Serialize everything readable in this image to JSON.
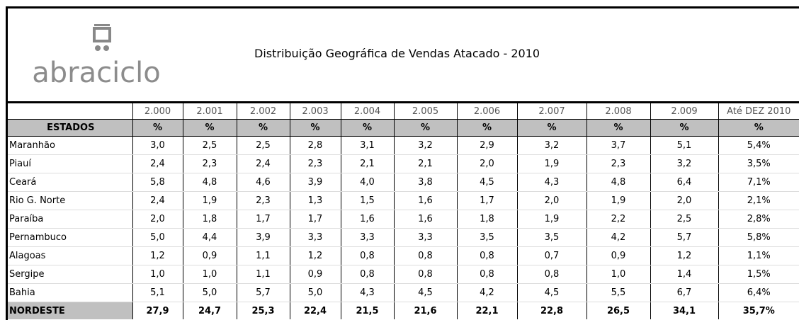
{
  "header": {
    "logo": "abraciclo",
    "title": "Distribuição Geográfica  de Vendas Atacado - 2010"
  },
  "table": {
    "years": [
      "2.000",
      "2.001",
      "2.002",
      "2.003",
      "2.004",
      "2.005",
      "2.006",
      "2.007",
      "2.008",
      "2.009",
      "Até DEZ 2010"
    ],
    "states_label": "ESTADOS",
    "units": [
      "%",
      "%",
      "%",
      "%",
      "%",
      "%",
      "%",
      "%",
      "%",
      "%",
      "%"
    ],
    "rows": [
      {
        "label": "Maranhão",
        "values": [
          "3,0",
          "2,5",
          "2,5",
          "2,8",
          "3,1",
          "3,2",
          "2,9",
          "3,2",
          "3,7",
          "5,1",
          "5,4%"
        ]
      },
      {
        "label": "Piauí",
        "values": [
          "2,4",
          "2,3",
          "2,4",
          "2,3",
          "2,1",
          "2,1",
          "2,0",
          "1,9",
          "2,3",
          "3,2",
          "3,5%"
        ]
      },
      {
        "label": "Ceará",
        "values": [
          "5,8",
          "4,8",
          "4,6",
          "3,9",
          "4,0",
          "3,8",
          "4,5",
          "4,3",
          "4,8",
          "6,4",
          "7,1%"
        ]
      },
      {
        "label": "Rio G. Norte",
        "values": [
          "2,4",
          "1,9",
          "2,3",
          "1,3",
          "1,5",
          "1,6",
          "1,7",
          "2,0",
          "1,9",
          "2,0",
          "2,1%"
        ]
      },
      {
        "label": "Paraíba",
        "values": [
          "2,0",
          "1,8",
          "1,7",
          "1,7",
          "1,6",
          "1,6",
          "1,8",
          "1,9",
          "2,2",
          "2,5",
          "2,8%"
        ]
      },
      {
        "label": "Pernambuco",
        "values": [
          "5,0",
          "4,4",
          "3,9",
          "3,3",
          "3,3",
          "3,3",
          "3,5",
          "3,5",
          "4,2",
          "5,7",
          "5,8%"
        ]
      },
      {
        "label": "Alagoas",
        "values": [
          "1,2",
          "0,9",
          "1,1",
          "1,2",
          "0,8",
          "0,8",
          "0,8",
          "0,7",
          "0,9",
          "1,2",
          "1,1%"
        ]
      },
      {
        "label": "Sergipe",
        "values": [
          "1,0",
          "1,0",
          "1,1",
          "0,9",
          "0,8",
          "0,8",
          "0,8",
          "0,8",
          "1,0",
          "1,4",
          "1,5%"
        ]
      },
      {
        "label": "Bahia",
        "values": [
          "5,1",
          "5,0",
          "5,7",
          "5,0",
          "4,3",
          "4,5",
          "4,2",
          "4,5",
          "5,5",
          "6,7",
          "6,4%"
        ]
      }
    ],
    "total": {
      "label": "NORDESTE",
      "values": [
        "27,9",
        "24,7",
        "25,3",
        "22,4",
        "21,5",
        "21,6",
        "22,1",
        "22,8",
        "26,5",
        "34,1",
        "35,7%"
      ]
    }
  }
}
